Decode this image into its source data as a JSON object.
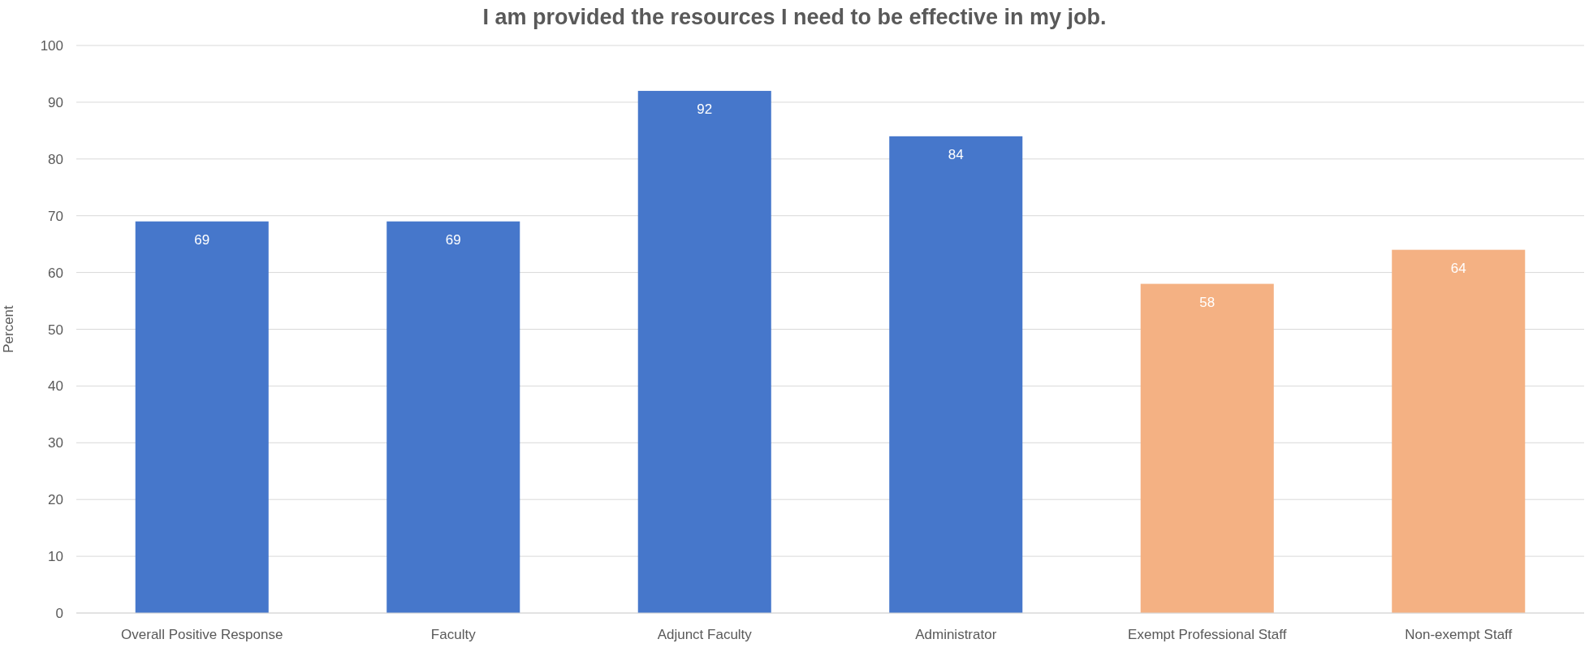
{
  "chart_data": {
    "type": "bar",
    "title": "I am provided the resources I need to be effective in my job.",
    "ylabel": "Percent",
    "categories": [
      "Overall Positive Response",
      "Faculty",
      "Adjunct Faculty",
      "Administrator",
      "Exempt Professional Staff",
      "Non-exempt Staff"
    ],
    "values": [
      69,
      69,
      92,
      84,
      58,
      64
    ],
    "colors": [
      "#4677cb",
      "#4677cb",
      "#4677cb",
      "#4677cb",
      "#f4b183",
      "#f4b183"
    ],
    "ylim": [
      0,
      100
    ],
    "yticks": [
      0,
      10,
      20,
      30,
      40,
      50,
      60,
      70,
      80,
      90,
      100
    ],
    "grid": "y",
    "data_labels": true
  }
}
